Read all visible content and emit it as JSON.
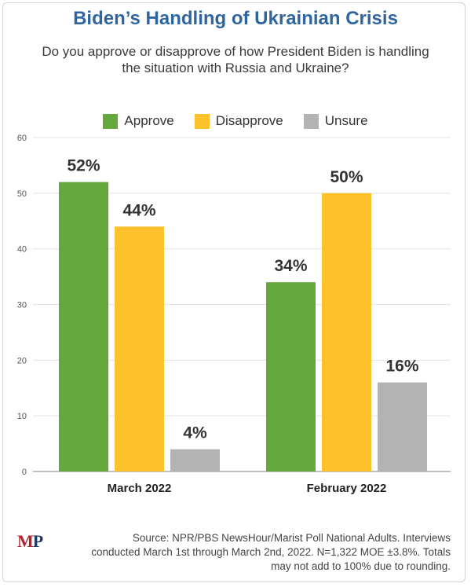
{
  "title": "Biden’s Handling of Ukrainian Crisis",
  "subtitle": "Do you approve or disapprove of how President Biden is handling the situation with Russia and Ukraine?",
  "legend": [
    {
      "label": "Approve",
      "color": "#64a83c"
    },
    {
      "label": "Disapprove",
      "color": "#fdc12b"
    },
    {
      "label": "Unsure",
      "color": "#b3b3b3"
    }
  ],
  "chart_data": {
    "type": "bar",
    "categories": [
      "March 2022",
      "February 2022"
    ],
    "series": [
      {
        "name": "Approve",
        "values": [
          52,
          34
        ],
        "labels": [
          "52%",
          "34%"
        ],
        "color": "#64a83c"
      },
      {
        "name": "Disapprove",
        "values": [
          44,
          50
        ],
        "labels": [
          "44%",
          "50%"
        ],
        "color": "#fdc12b"
      },
      {
        "name": "Unsure",
        "values": [
          4,
          16
        ],
        "labels": [
          "4%",
          "16%"
        ],
        "color": "#b3b3b3"
      }
    ],
    "ylim": [
      0,
      60
    ],
    "yticks": [
      0,
      10,
      20,
      30,
      40,
      50,
      60
    ],
    "grid": true,
    "legend_position": "top"
  },
  "footer": {
    "logo_m": "M",
    "logo_p": "P",
    "source": "Source: NPR/PBS NewsHour/Marist Poll National Adults. Interviews conducted March 1st through March 2nd, 2022. N=1,322 MOE ±3.8%. Totals may not add to 100% due to rounding."
  }
}
